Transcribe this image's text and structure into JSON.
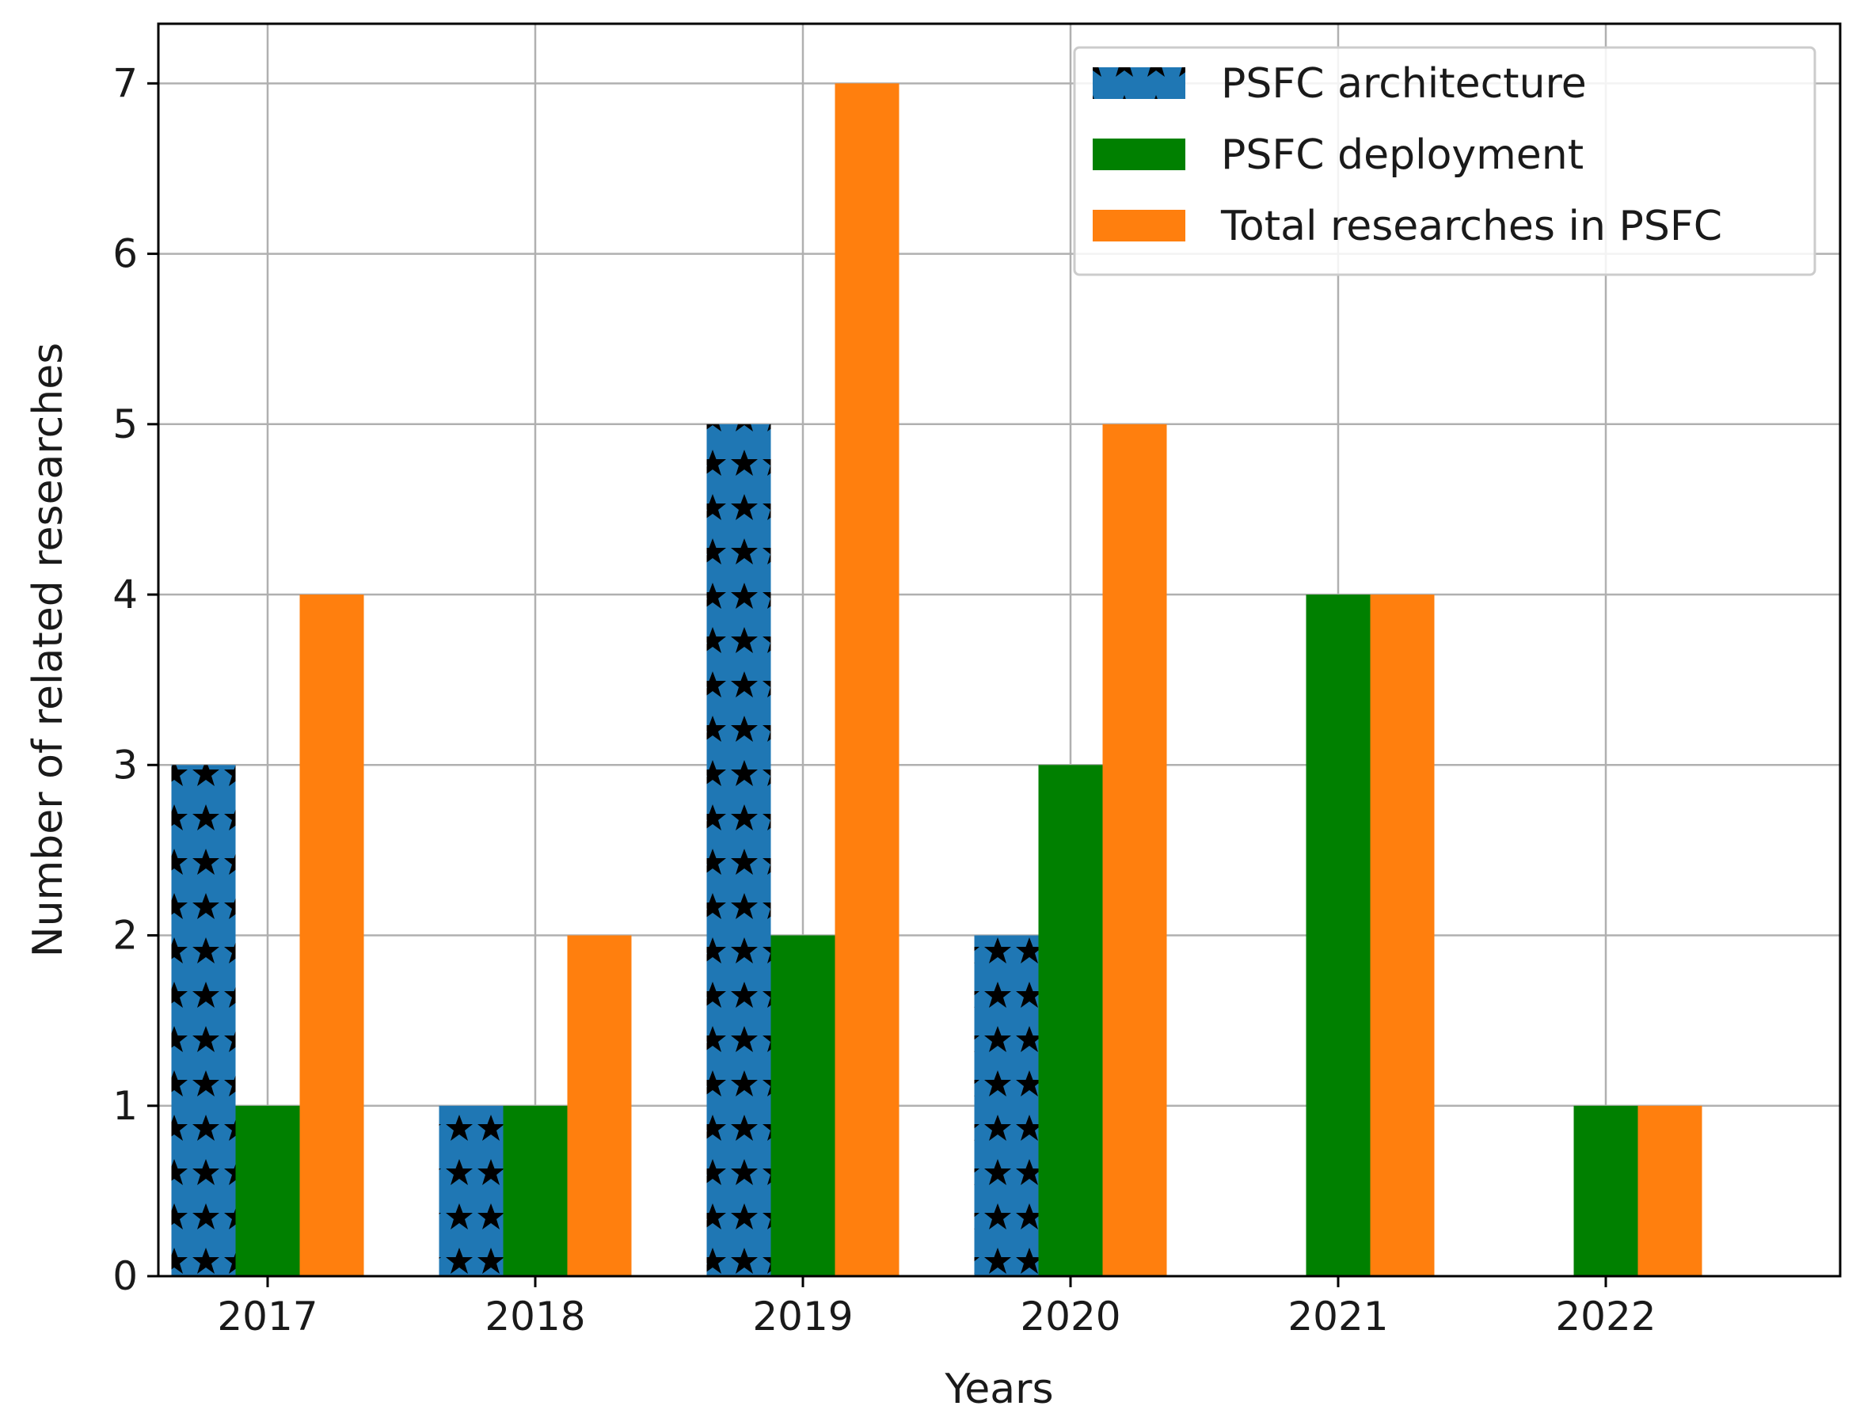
{
  "chart_data": {
    "type": "bar",
    "title": "",
    "xlabel": "Years",
    "ylabel": "Number of related researches",
    "categories": [
      "2017",
      "2018",
      "2019",
      "2020",
      "2021",
      "2022"
    ],
    "ylim": [
      0,
      7.35
    ],
    "yticks": [
      0,
      1,
      2,
      3,
      4,
      5,
      6,
      7
    ],
    "grid": true,
    "legend_position": "top-right",
    "series": [
      {
        "name": "PSFC architecture",
        "values": [
          3,
          1,
          5,
          2,
          0,
          0
        ],
        "color": "#1f77b4",
        "hatch": "stars"
      },
      {
        "name": "PSFC deployment",
        "values": [
          1,
          1,
          2,
          3,
          4,
          1
        ],
        "color": "#008000",
        "hatch": "none"
      },
      {
        "name": "Total researches in PSFC",
        "values": [
          4,
          2,
          7,
          5,
          4,
          1
        ],
        "color": "#ff7f0e",
        "hatch": "none"
      }
    ]
  }
}
